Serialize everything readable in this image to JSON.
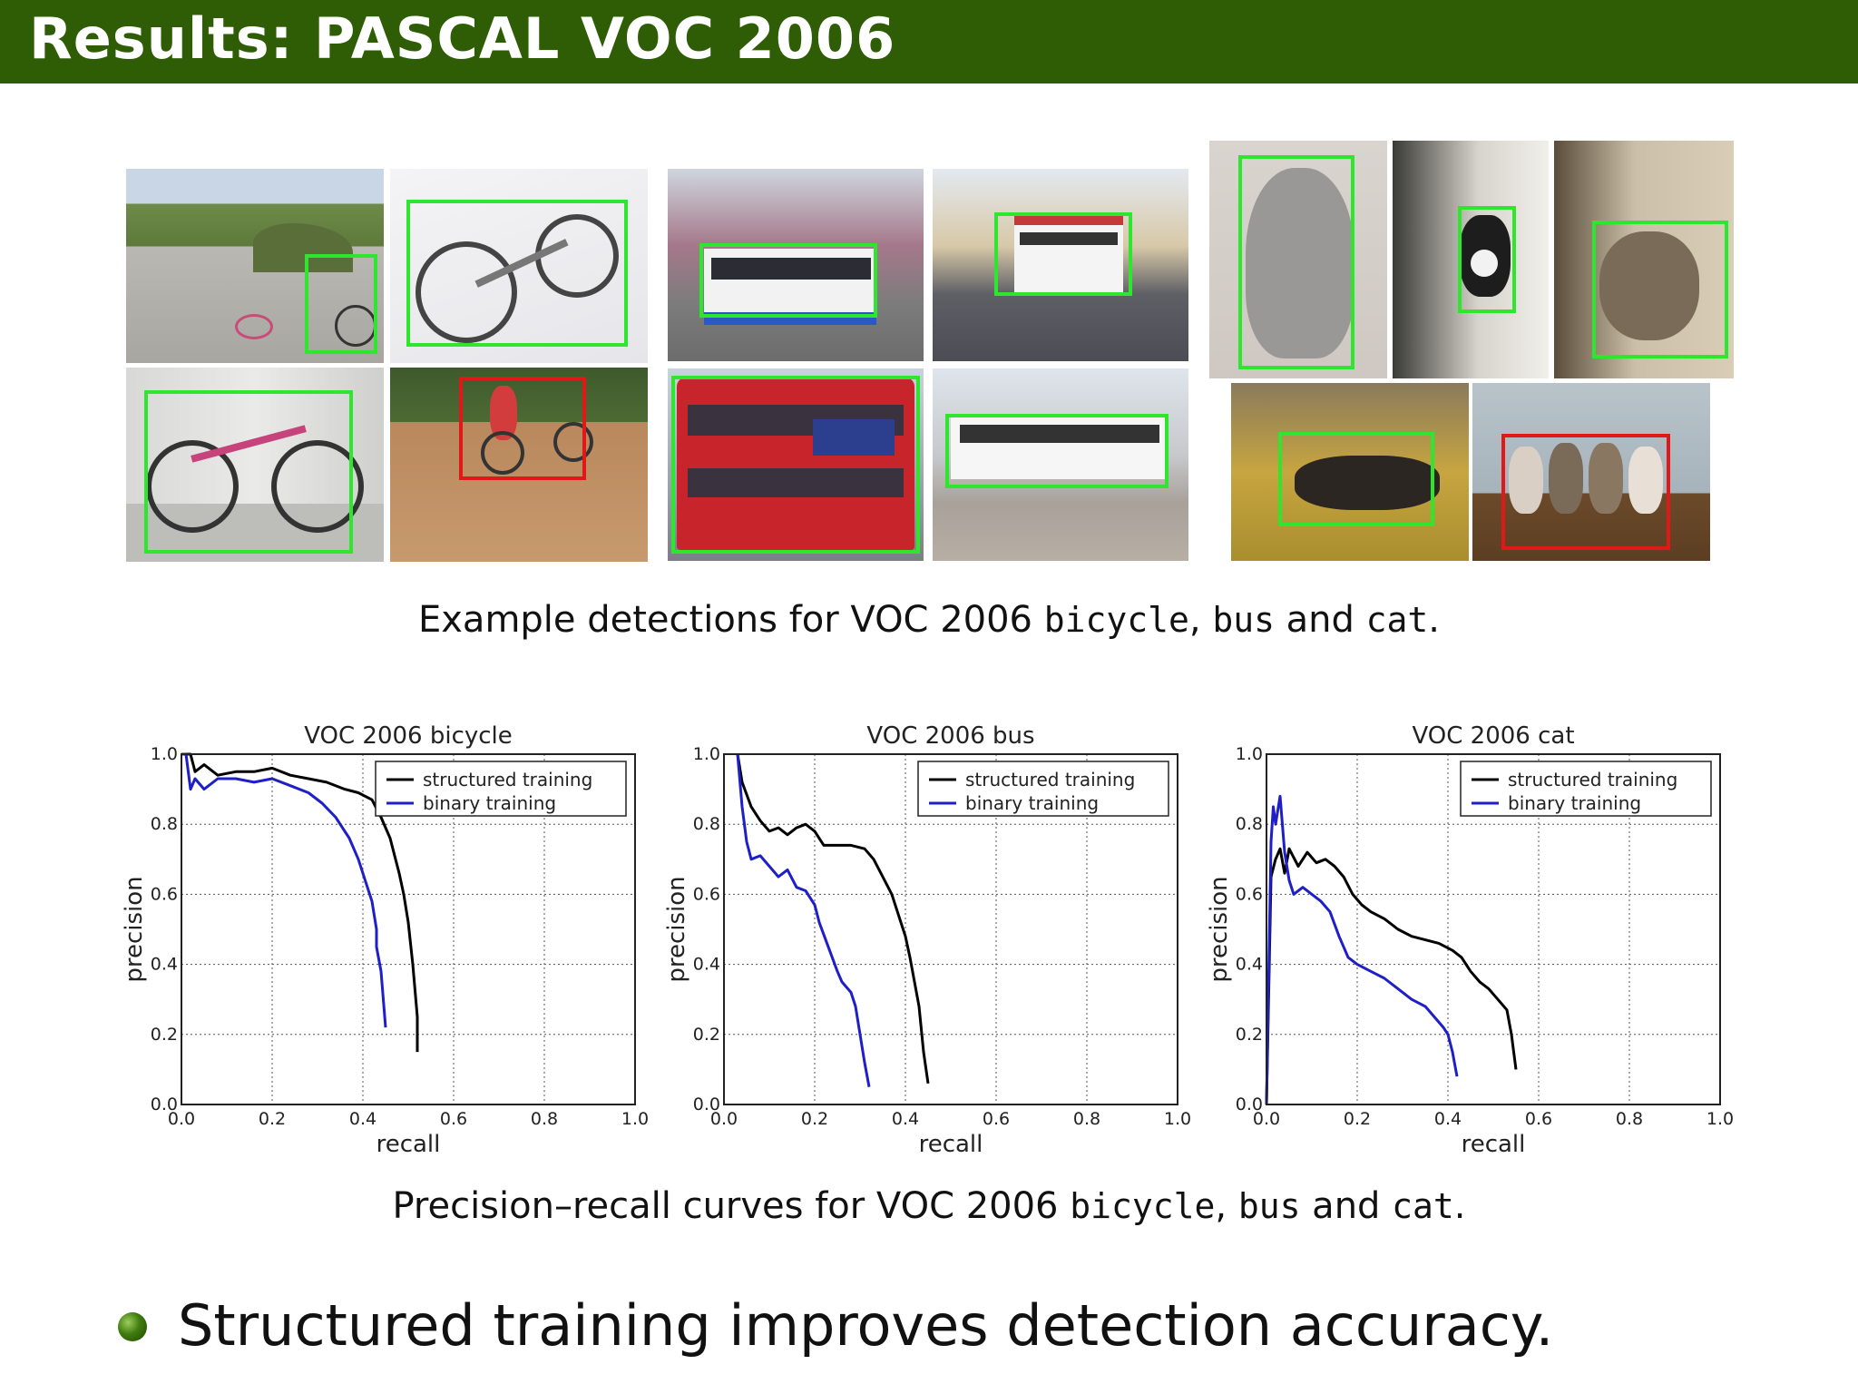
{
  "slide": {
    "title": "Results:  PASCAL VOC 2006",
    "bullet": "Structured training improves detection accuracy."
  },
  "caption_top": {
    "prefix": "Example detections for VOC 2006 ",
    "c1": "bicycle",
    "sep1": ", ",
    "c2": "bus",
    "sep2": " and ",
    "c3": "cat",
    "suffix": "."
  },
  "caption_bottom": {
    "prefix": "Precision–recall curves for VOC 2006 ",
    "c1": "bicycle",
    "sep1": ", ",
    "c2": "bus",
    "sep2": " and ",
    "c3": "cat",
    "suffix": "."
  },
  "photos": [
    {
      "subject": "bicycle",
      "detection": "correct"
    },
    {
      "subject": "bicycle",
      "detection": "correct"
    },
    {
      "subject": "bicycle",
      "detection": "correct"
    },
    {
      "subject": "bicycle",
      "detection": "incorrect"
    },
    {
      "subject": "bus",
      "detection": "correct"
    },
    {
      "subject": "bus",
      "detection": "correct"
    },
    {
      "subject": "bus",
      "detection": "correct"
    },
    {
      "subject": "bus",
      "detection": "correct"
    },
    {
      "subject": "cat",
      "detection": "correct"
    },
    {
      "subject": "cat",
      "detection": "correct"
    },
    {
      "subject": "cat",
      "detection": "correct"
    },
    {
      "subject": "cat",
      "detection": "correct"
    },
    {
      "subject": "cat",
      "detection": "incorrect"
    }
  ],
  "colors": {
    "title_bar": "#2e5d05",
    "correct_box": "#2ee62e",
    "incorrect_box": "#e01818",
    "structured": "#000000",
    "binary": "#1f1fc8"
  },
  "chart_data": [
    {
      "type": "line",
      "title": "VOC 2006 bicycle",
      "xlabel": "recall",
      "ylabel": "precision",
      "xlim": [
        0,
        1
      ],
      "ylim": [
        0,
        1
      ],
      "xticks": [
        "0.0",
        "0.2",
        "0.4",
        "0.6",
        "0.8",
        "1.0"
      ],
      "yticks": [
        "0.0",
        "0.2",
        "0.4",
        "0.6",
        "0.8",
        "1.0"
      ],
      "grid": true,
      "legend_position": "top-right",
      "series": [
        {
          "name": "structured training",
          "color": "#000000",
          "x": [
            0.0,
            0.02,
            0.03,
            0.05,
            0.08,
            0.12,
            0.16,
            0.2,
            0.24,
            0.28,
            0.32,
            0.36,
            0.39,
            0.42,
            0.44,
            0.46,
            0.48,
            0.49,
            0.5,
            0.51,
            0.52,
            0.52
          ],
          "y": [
            1.0,
            1.0,
            0.95,
            0.97,
            0.94,
            0.95,
            0.95,
            0.96,
            0.94,
            0.93,
            0.92,
            0.9,
            0.89,
            0.87,
            0.82,
            0.76,
            0.66,
            0.6,
            0.52,
            0.4,
            0.25,
            0.15
          ]
        },
        {
          "name": "binary training",
          "color": "#1f1fc8",
          "x": [
            0.0,
            0.01,
            0.02,
            0.03,
            0.05,
            0.08,
            0.12,
            0.16,
            0.2,
            0.24,
            0.28,
            0.31,
            0.34,
            0.37,
            0.39,
            0.41,
            0.42,
            0.43,
            0.43,
            0.44,
            0.45
          ],
          "y": [
            1.0,
            1.0,
            0.9,
            0.93,
            0.9,
            0.93,
            0.93,
            0.92,
            0.93,
            0.91,
            0.89,
            0.86,
            0.82,
            0.76,
            0.7,
            0.62,
            0.58,
            0.5,
            0.45,
            0.38,
            0.22
          ]
        }
      ]
    },
    {
      "type": "line",
      "title": "VOC 2006 bus",
      "xlabel": "recall",
      "ylabel": "precision",
      "xlim": [
        0,
        1
      ],
      "ylim": [
        0,
        1
      ],
      "xticks": [
        "0.0",
        "0.2",
        "0.4",
        "0.6",
        "0.8",
        "1.0"
      ],
      "yticks": [
        "0.0",
        "0.2",
        "0.4",
        "0.6",
        "0.8",
        "1.0"
      ],
      "grid": true,
      "legend_position": "top-right",
      "series": [
        {
          "name": "structured training",
          "color": "#000000",
          "x": [
            0.03,
            0.04,
            0.06,
            0.08,
            0.1,
            0.12,
            0.14,
            0.16,
            0.18,
            0.2,
            0.22,
            0.25,
            0.28,
            0.31,
            0.33,
            0.35,
            0.37,
            0.39,
            0.4,
            0.41,
            0.42,
            0.43,
            0.44,
            0.45
          ],
          "y": [
            1.0,
            0.92,
            0.85,
            0.81,
            0.78,
            0.79,
            0.77,
            0.79,
            0.8,
            0.78,
            0.74,
            0.74,
            0.74,
            0.73,
            0.7,
            0.65,
            0.6,
            0.52,
            0.48,
            0.42,
            0.35,
            0.28,
            0.15,
            0.06
          ]
        },
        {
          "name": "binary training",
          "color": "#1f1fc8",
          "x": [
            0.03,
            0.04,
            0.05,
            0.06,
            0.08,
            0.1,
            0.12,
            0.14,
            0.16,
            0.18,
            0.2,
            0.21,
            0.23,
            0.25,
            0.26,
            0.28,
            0.29,
            0.3,
            0.31,
            0.32
          ],
          "y": [
            1.0,
            0.85,
            0.75,
            0.7,
            0.71,
            0.68,
            0.65,
            0.67,
            0.62,
            0.61,
            0.57,
            0.52,
            0.45,
            0.38,
            0.35,
            0.32,
            0.28,
            0.2,
            0.12,
            0.05
          ]
        }
      ]
    },
    {
      "type": "line",
      "title": "VOC 2006 cat",
      "xlabel": "recall",
      "ylabel": "precision",
      "xlim": [
        0,
        1
      ],
      "ylim": [
        0,
        1
      ],
      "xticks": [
        "0.0",
        "0.2",
        "0.4",
        "0.6",
        "0.8",
        "1.0"
      ],
      "yticks": [
        "0.0",
        "0.2",
        "0.4",
        "0.6",
        "0.8",
        "1.0"
      ],
      "grid": true,
      "legend_position": "top-right",
      "series": [
        {
          "name": "structured training",
          "color": "#000000",
          "x": [
            0.0,
            0.01,
            0.02,
            0.03,
            0.04,
            0.05,
            0.07,
            0.09,
            0.11,
            0.13,
            0.15,
            0.17,
            0.19,
            0.21,
            0.23,
            0.26,
            0.29,
            0.32,
            0.35,
            0.38,
            0.41,
            0.43,
            0.45,
            0.47,
            0.49,
            0.51,
            0.53,
            0.54,
            0.55
          ],
          "y": [
            0.0,
            0.65,
            0.7,
            0.73,
            0.66,
            0.73,
            0.68,
            0.72,
            0.69,
            0.7,
            0.68,
            0.65,
            0.6,
            0.57,
            0.55,
            0.53,
            0.5,
            0.48,
            0.47,
            0.46,
            0.44,
            0.42,
            0.38,
            0.35,
            0.33,
            0.3,
            0.27,
            0.2,
            0.1
          ]
        },
        {
          "name": "binary training",
          "color": "#1f1fc8",
          "x": [
            0.0,
            0.01,
            0.015,
            0.02,
            0.03,
            0.04,
            0.05,
            0.06,
            0.08,
            0.1,
            0.12,
            0.14,
            0.16,
            0.18,
            0.2,
            0.23,
            0.26,
            0.29,
            0.32,
            0.35,
            0.37,
            0.39,
            0.4,
            0.41,
            0.42
          ],
          "y": [
            0.0,
            0.75,
            0.85,
            0.8,
            0.88,
            0.72,
            0.64,
            0.6,
            0.62,
            0.6,
            0.58,
            0.55,
            0.48,
            0.42,
            0.4,
            0.38,
            0.36,
            0.33,
            0.3,
            0.28,
            0.25,
            0.22,
            0.2,
            0.15,
            0.08
          ]
        }
      ]
    }
  ]
}
